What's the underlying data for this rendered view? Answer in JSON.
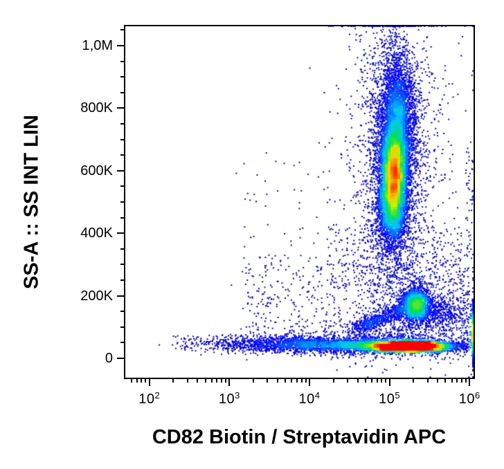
{
  "figure": {
    "background": "#ffffff",
    "axis_color": "#000000"
  },
  "chart_data": {
    "type": "scatter",
    "subtype": "flow-cytometry-pseudocolor-density-plot",
    "title": "",
    "xlabel": "CD82 Biotin / Streptavidin APC",
    "ylabel": "SS-A :: SS INT LIN",
    "x_scale": "log10",
    "x_range_log10": [
      1.7,
      6.05
    ],
    "y_scale": "linear",
    "y_range": [
      -62000,
      1062000
    ],
    "x_major_ticks": [
      {
        "base": "10",
        "exponent": "2",
        "log10": 2
      },
      {
        "base": "10",
        "exponent": "3",
        "log10": 3
      },
      {
        "base": "10",
        "exponent": "4",
        "log10": 4
      },
      {
        "base": "10",
        "exponent": "5",
        "log10": 5
      },
      {
        "base": "10",
        "exponent": "6",
        "log10": 6
      }
    ],
    "y_major_ticks": [
      {
        "value": 0,
        "label": "0"
      },
      {
        "value": 200000,
        "label": "200K"
      },
      {
        "value": 400000,
        "label": "400K"
      },
      {
        "value": 600000,
        "label": "600K"
      },
      {
        "value": 800000,
        "label": "800K"
      },
      {
        "value": 1000000,
        "label": "1,0M"
      }
    ],
    "y_minor_step": 50000,
    "grid": "off",
    "legend": "none",
    "colormap": [
      {
        "t": 0.0,
        "c": "#0000a0"
      },
      {
        "t": 0.15,
        "c": "#0000ff"
      },
      {
        "t": 0.38,
        "c": "#00c8ff"
      },
      {
        "t": 0.55,
        "c": "#00e050"
      },
      {
        "t": 0.7,
        "c": "#c8f000"
      },
      {
        "t": 0.82,
        "c": "#ffc800"
      },
      {
        "t": 1.0,
        "c": "#ff0000"
      }
    ],
    "populations": [
      {
        "name": "granulocyte-core",
        "type": "gaussian",
        "n": 5000,
        "cx": 5.05,
        "sx": 0.085,
        "cy": 580000,
        "sy": 80000,
        "clip": false
      },
      {
        "name": "granulocyte-upper",
        "type": "gaussian",
        "n": 3200,
        "cx": 5.1,
        "sx": 0.11,
        "cy": 760000,
        "sy": 110000,
        "clip": true
      },
      {
        "name": "granulocyte-lower",
        "type": "gaussian",
        "n": 1300,
        "cx": 5.02,
        "sx": 0.1,
        "cy": 455000,
        "sy": 60000,
        "clip": false
      },
      {
        "name": "granulocyte-halo",
        "type": "gaussian",
        "n": 2200,
        "cx": 5.06,
        "sx": 0.2,
        "cy": 640000,
        "sy": 200000,
        "clip": true
      },
      {
        "name": "granulocyte-sparse-halo",
        "type": "gaussian",
        "n": 650,
        "cx": 5.05,
        "sx": 0.4,
        "cy": 650000,
        "sy": 300000,
        "clip": true
      },
      {
        "name": "debris-band-core",
        "type": "gaussian",
        "n": 4800,
        "cx": 5.25,
        "sx": 0.28,
        "cy": 38000,
        "sy": 8000,
        "clip": false
      },
      {
        "name": "debris-band-mid",
        "type": "gaussian",
        "n": 2000,
        "cx": 4.5,
        "sx": 0.55,
        "cy": 42000,
        "sy": 12000,
        "clip": false
      },
      {
        "name": "debris-band-left",
        "type": "gaussian",
        "n": 900,
        "cx": 3.55,
        "sx": 0.45,
        "cy": 46000,
        "sy": 14000,
        "clip": false
      },
      {
        "name": "debris-band-fuzz",
        "type": "gaussian",
        "n": 700,
        "cx": 5.0,
        "sx": 0.6,
        "cy": 52000,
        "sy": 30000,
        "clip": false
      },
      {
        "name": "far-left-dots",
        "type": "uniform",
        "n": 55,
        "x0": 2.3,
        "x1": 3.05,
        "y0": 30000,
        "y1": 75000,
        "clip": false
      },
      {
        "name": "monocyte-cluster",
        "type": "gaussian",
        "n": 1500,
        "cx": 5.33,
        "sx": 0.09,
        "cy": 170000,
        "sy": 30000,
        "clip": false
      },
      {
        "name": "monocyte-streak",
        "type": "streak",
        "n": 700,
        "x0": 4.6,
        "x1": 5.26,
        "y0": 95000,
        "y1": 165000,
        "sx": 0.07,
        "sy": 14000,
        "clip": false
      },
      {
        "name": "monocyte-right-spill",
        "type": "gaussian",
        "n": 500,
        "cx": 5.6,
        "sx": 0.18,
        "cy": 150000,
        "sy": 28000,
        "clip": false
      },
      {
        "name": "right-edge-pileup",
        "type": "gaussian",
        "n": 700,
        "cx": 6.25,
        "sx": 0.18,
        "cy": 80000,
        "sy": 45000,
        "clip": true
      },
      {
        "name": "right-edge-sparse",
        "type": "uniform",
        "n": 60,
        "x0": 5.95,
        "x1": 6.05,
        "y0": 150000,
        "y1": 700000,
        "clip": false
      },
      {
        "name": "scatter-noise-low",
        "type": "uniform",
        "n": 550,
        "x0": 3.2,
        "x1": 6.0,
        "y0": 55000,
        "y1": 330000,
        "clip": false
      },
      {
        "name": "scatter-noise-right",
        "type": "uniform",
        "n": 350,
        "x0": 4.6,
        "x1": 6.0,
        "y0": 60000,
        "y1": 300000,
        "clip": false
      },
      {
        "name": "scatter-noise-mid",
        "type": "uniform",
        "n": 300,
        "x0": 4.2,
        "x1": 5.9,
        "y0": 230000,
        "y1": 420000,
        "clip": false
      },
      {
        "name": "scatter-noise-upper-left",
        "type": "uniform",
        "n": 60,
        "x0": 3.0,
        "x1": 4.6,
        "y0": 90000,
        "y1": 650000,
        "clip": false
      }
    ]
  }
}
